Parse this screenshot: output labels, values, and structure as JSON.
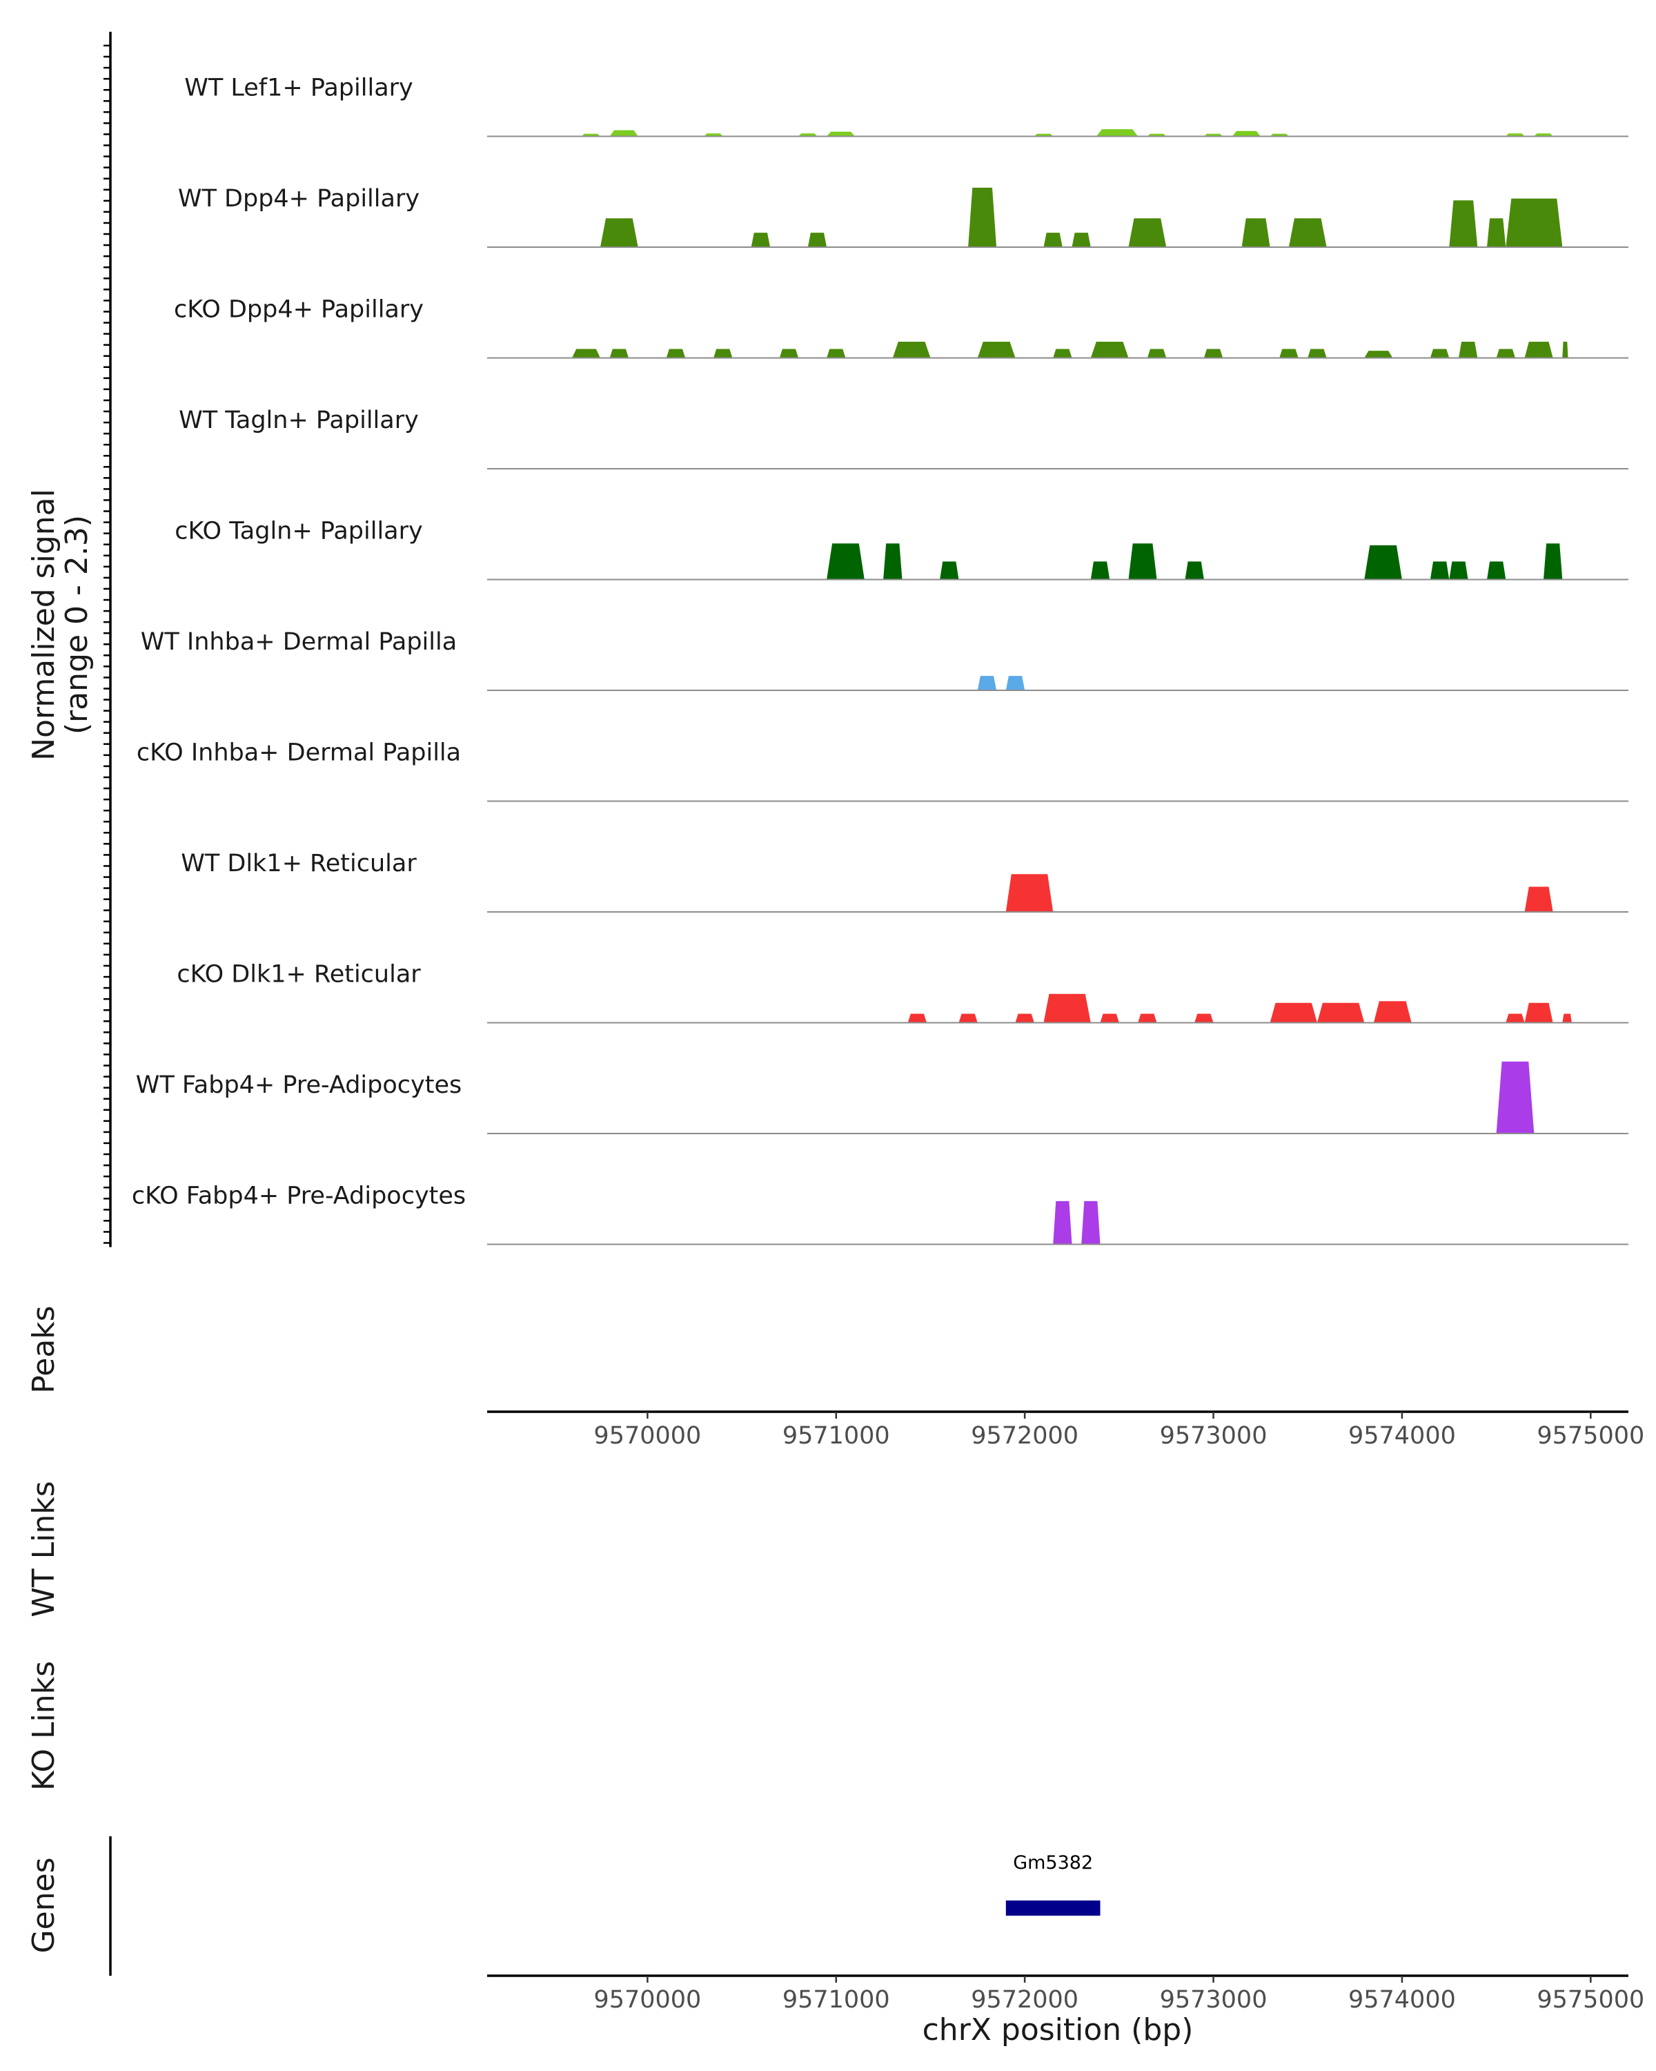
{
  "chart_data": {
    "type": "area",
    "chromosome": "chrX",
    "xlim": [
      9569150,
      9575200
    ],
    "ylim": [
      0,
      2.3
    ],
    "signal_axis_label": "Normalized signal",
    "signal_axis_range_label": "(range 0 - 2.3)",
    "x_axis_label": "chrX position (bp)",
    "x_ticks": [
      9570000,
      9571000,
      9572000,
      9573000,
      9574000,
      9575000
    ],
    "x_tick_labels": [
      "9570000",
      "9571000",
      "9572000",
      "9573000",
      "9574000",
      "9575000"
    ],
    "series": [
      {
        "name": "WT Lef1+ Papillary",
        "color": "#7ccd1f",
        "peaks": [
          [
            9569650,
            9569750,
            0.07
          ],
          [
            9569800,
            9569950,
            0.17
          ],
          [
            9570300,
            9570400,
            0.08
          ],
          [
            9570800,
            9570900,
            0.08
          ],
          [
            9570950,
            9571100,
            0.13
          ],
          [
            9572050,
            9572150,
            0.07
          ],
          [
            9572380,
            9572600,
            0.2
          ],
          [
            9572650,
            9572750,
            0.07
          ],
          [
            9572950,
            9573050,
            0.07
          ],
          [
            9573100,
            9573250,
            0.15
          ],
          [
            9573300,
            9573400,
            0.07
          ],
          [
            9574550,
            9574650,
            0.08
          ],
          [
            9574700,
            9574800,
            0.08
          ]
        ]
      },
      {
        "name": "WT Dpp4+ Papillary",
        "color": "#4a8a0a",
        "peaks": [
          [
            9569750,
            9569950,
            0.8
          ],
          [
            9570550,
            9570650,
            0.4
          ],
          [
            9570850,
            9570950,
            0.4
          ],
          [
            9571700,
            9571850,
            1.65
          ],
          [
            9572100,
            9572200,
            0.4
          ],
          [
            9572250,
            9572350,
            0.4
          ],
          [
            9572550,
            9572750,
            0.8
          ],
          [
            9573150,
            9573300,
            0.8
          ],
          [
            9573400,
            9573600,
            0.8
          ],
          [
            9574250,
            9574400,
            1.3
          ],
          [
            9574450,
            9574550,
            0.8
          ],
          [
            9574550,
            9574850,
            1.35
          ]
        ]
      },
      {
        "name": "cKO Dpp4+ Papillary",
        "color": "#4a8a0a",
        "peaks": [
          [
            9569600,
            9569750,
            0.25
          ],
          [
            9569800,
            9569900,
            0.25
          ],
          [
            9570100,
            9570200,
            0.25
          ],
          [
            9570350,
            9570450,
            0.25
          ],
          [
            9570700,
            9570800,
            0.25
          ],
          [
            9570950,
            9571050,
            0.25
          ],
          [
            9571300,
            9571500,
            0.45
          ],
          [
            9571750,
            9571950,
            0.45
          ],
          [
            9572150,
            9572250,
            0.25
          ],
          [
            9572350,
            9572550,
            0.45
          ],
          [
            9572650,
            9572750,
            0.25
          ],
          [
            9572950,
            9573050,
            0.25
          ],
          [
            9573350,
            9573450,
            0.25
          ],
          [
            9573500,
            9573600,
            0.25
          ],
          [
            9573800,
            9573950,
            0.2
          ],
          [
            9574150,
            9574250,
            0.25
          ],
          [
            9574300,
            9574400,
            0.45
          ],
          [
            9574500,
            9574600,
            0.25
          ],
          [
            9574650,
            9574800,
            0.45
          ],
          [
            9574850,
            9574880,
            0.45
          ]
        ]
      },
      {
        "name": "WT Tagln+ Papillary",
        "color": "#006400",
        "peaks": []
      },
      {
        "name": "cKO Tagln+ Papillary",
        "color": "#006400",
        "peaks": [
          [
            9570950,
            9571150,
            1.0
          ],
          [
            9571250,
            9571350,
            1.0
          ],
          [
            9571550,
            9571650,
            0.5
          ],
          [
            9572350,
            9572450,
            0.5
          ],
          [
            9572550,
            9572700,
            1.0
          ],
          [
            9572850,
            9572950,
            0.5
          ],
          [
            9573800,
            9574000,
            0.95
          ],
          [
            9574150,
            9574250,
            0.5
          ],
          [
            9574250,
            9574350,
            0.5
          ],
          [
            9574450,
            9574550,
            0.5
          ],
          [
            9574750,
            9574850,
            1.0
          ]
        ]
      },
      {
        "name": "WT Inhba+ Dermal Papilla",
        "color": "#5aaae8",
        "peaks": [
          [
            9571750,
            9571850,
            0.4
          ],
          [
            9571900,
            9572000,
            0.4
          ]
        ]
      },
      {
        "name": "cKO Inhba+ Dermal Papilla",
        "color": "#5aaae8",
        "peaks": []
      },
      {
        "name": "WT Dlk1+ Reticular",
        "color": "#f53333",
        "peaks": [
          [
            9571900,
            9572150,
            1.05
          ],
          [
            9574650,
            9574800,
            0.7
          ]
        ]
      },
      {
        "name": "cKO Dlk1+ Reticular",
        "color": "#f53333",
        "peaks": [
          [
            9571380,
            9571480,
            0.25
          ],
          [
            9571650,
            9571750,
            0.25
          ],
          [
            9571950,
            9572050,
            0.25
          ],
          [
            9572100,
            9572350,
            0.8
          ],
          [
            9572400,
            9572500,
            0.25
          ],
          [
            9572600,
            9572700,
            0.25
          ],
          [
            9572900,
            9573000,
            0.25
          ],
          [
            9573300,
            9573550,
            0.55
          ],
          [
            9573550,
            9573800,
            0.55
          ],
          [
            9573850,
            9574050,
            0.6
          ],
          [
            9574550,
            9574650,
            0.25
          ],
          [
            9574650,
            9574800,
            0.55
          ],
          [
            9574850,
            9574900,
            0.25
          ]
        ]
      },
      {
        "name": "WT Fabp4+ Pre-Adipocytes",
        "color": "#aa3de8",
        "peaks": [
          [
            9574500,
            9574700,
            2.0
          ]
        ]
      },
      {
        "name": "cKO Fabp4+ Pre-Adipocytes",
        "color": "#aa3de8",
        "peaks": [
          [
            9572150,
            9572250,
            1.2
          ],
          [
            9572300,
            9572400,
            1.2
          ]
        ]
      }
    ],
    "side_panels": [
      "Peaks",
      "WT Links",
      "KO Links",
      "Genes"
    ],
    "genes": [
      {
        "name": "Gm5382",
        "start": 9571900,
        "end": 9572400,
        "color": "#00008b"
      }
    ]
  }
}
